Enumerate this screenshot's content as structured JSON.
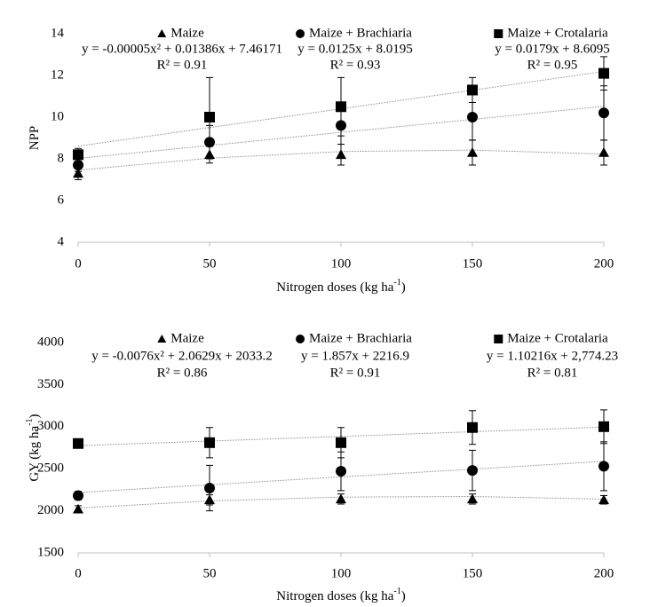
{
  "chart_data": [
    {
      "type": "scatter",
      "y_label": "NPP",
      "x_label": "Nitrogen  doses (kg ha",
      "x_label_sup": "-1",
      "x_label_end": ")",
      "x": [
        0,
        50,
        100,
        150,
        200
      ],
      "xlim": [
        0,
        200
      ],
      "xticks": [
        0,
        50,
        100,
        150,
        200
      ],
      "ylim": [
        4,
        14
      ],
      "yticks": [
        4,
        6,
        8,
        10,
        12,
        14
      ],
      "series": [
        {
          "name": "Maize",
          "marker": "triangle",
          "color": "#000000",
          "equation": "y = -0.00005x² + 0.01386x + 7.46171",
          "r2": "R² = 0.91",
          "values": [
            7.3,
            8.2,
            8.2,
            8.3,
            8.3
          ],
          "errors": [
            0.3,
            0.4,
            0.5,
            0.6,
            0.6
          ],
          "trend": [
            7.46,
            8.03,
            8.35,
            8.42,
            8.23
          ]
        },
        {
          "name": "Maize + Brachiaria",
          "marker": "circle",
          "color": "#000000",
          "equation": "y = 0.0125x + 8.0195",
          "r2": "R² = 0.93",
          "values": [
            7.7,
            8.8,
            9.6,
            10.0,
            10.2
          ],
          "errors": [
            0.3,
            0.8,
            0.9,
            1.1,
            1.3
          ],
          "trend": [
            8.02,
            8.64,
            9.27,
            9.89,
            10.52
          ]
        },
        {
          "name": "Maize + Crotalaria",
          "marker": "square",
          "color": "#000000",
          "equation": "y = 0.0179x + 8.6095",
          "r2": "R² = 0.95",
          "values": [
            8.2,
            10.0,
            10.5,
            11.3,
            12.1
          ],
          "errors": [
            0.3,
            1.9,
            1.4,
            0.6,
            0.8
          ],
          "trend": [
            8.61,
            9.5,
            10.4,
            11.29,
            12.19
          ]
        }
      ]
    },
    {
      "type": "scatter",
      "y_label": "GY (kg ha",
      "y_label_sup": "-1",
      "y_label_end": ")",
      "x_label": "Nitrogen  doses (kg ha",
      "x_label_sup": "-1",
      "x_label_end": ")",
      "x": [
        0,
        50,
        100,
        150,
        200
      ],
      "xlim": [
        0,
        200
      ],
      "xticks": [
        0,
        50,
        100,
        150,
        200
      ],
      "ylim": [
        1500,
        4000
      ],
      "yticks": [
        1500,
        2000,
        2500,
        3000,
        3500,
        4000
      ],
      "series": [
        {
          "name": "Maize",
          "marker": "triangle",
          "color": "#000000",
          "equation": "y = -0.0076x² + 2.0629x + 2033.2",
          "r2": "R² = 0.86",
          "values": [
            2020,
            2130,
            2140,
            2140,
            2130
          ],
          "errors": [
            40,
            60,
            60,
            60,
            50
          ],
          "trend": [
            2033,
            2117,
            2163,
            2170,
            2139
          ]
        },
        {
          "name": "Maize + Brachiaria",
          "marker": "circle",
          "color": "#000000",
          "equation": "y = 1.857x + 2216.9",
          "r2": "R² = 0.91",
          "values": [
            2180,
            2270,
            2470,
            2480,
            2530
          ],
          "errors": [
            50,
            270,
            230,
            240,
            290
          ],
          "trend": [
            2217,
            2310,
            2403,
            2495,
            2588
          ]
        },
        {
          "name": "Maize + Crotalaria",
          "marker": "square",
          "color": "#000000",
          "equation": "y = 1.10216x + 2,774.23",
          "r2": "R² = 0.81",
          "values": [
            2800,
            2810,
            2810,
            2990,
            3000
          ],
          "errors": [
            40,
            180,
            180,
            200,
            200
          ],
          "trend": [
            2774,
            2829,
            2884,
            2940,
            2995
          ]
        }
      ]
    }
  ]
}
